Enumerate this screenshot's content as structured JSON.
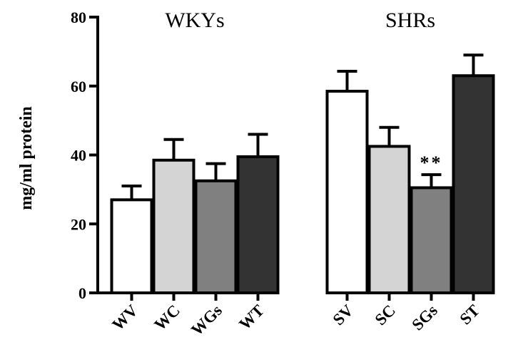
{
  "chart_data": {
    "type": "bar",
    "title": "",
    "xlabel": "",
    "ylabel": "mg/ml protein",
    "ylim": [
      0,
      80
    ],
    "yticks": [
      0,
      20,
      40,
      60,
      80
    ],
    "groups": [
      {
        "label": "WKYs",
        "categories": [
          "WV",
          "WC",
          "WGs",
          "WT"
        ]
      },
      {
        "label": "SHRs",
        "categories": [
          "SV",
          "SC",
          "SGs",
          "ST"
        ]
      }
    ],
    "categories": [
      "WV",
      "WC",
      "WGs",
      "WT",
      "SV",
      "SC",
      "SGs",
      "ST"
    ],
    "values": [
      27,
      38.5,
      32.5,
      39.5,
      58.5,
      42.5,
      30.5,
      63
    ],
    "errors": [
      4,
      6,
      5,
      6.5,
      5.8,
      5.5,
      3.8,
      6
    ],
    "colors": [
      "#ffffff",
      "#d4d4d4",
      "#808080",
      "#333333",
      "#ffffff",
      "#d4d4d4",
      "#808080",
      "#333333"
    ],
    "annotations": [
      {
        "category": "SGs",
        "text": "**"
      }
    ],
    "grid": false,
    "legend": "none"
  }
}
